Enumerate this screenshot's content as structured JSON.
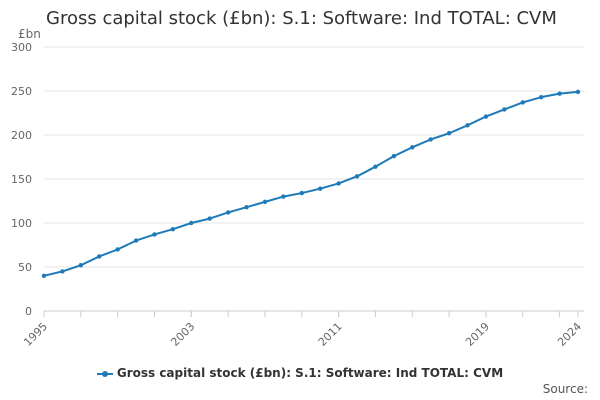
{
  "title": "Gross capital stock (£bn): S.1: Software: Ind TOTAL: CVM",
  "source_label": "Source:",
  "colors": {
    "series": "#1f7ab8",
    "grid": "#e6e6e6",
    "axis": "#cccccc",
    "text": "#666666"
  },
  "chart_data": {
    "type": "line",
    "title": "Gross capital stock (£bn): S.1: Software: Ind TOTAL: CVM",
    "ylabel": "£bn",
    "xlabel": "",
    "ylim": [
      0,
      300
    ],
    "xlim": [
      1995,
      2024
    ],
    "yticks": [
      0,
      50,
      100,
      150,
      200,
      250,
      300
    ],
    "xticks": [
      1995,
      2003,
      2011,
      2019,
      2024
    ],
    "grid": true,
    "legend": "bottom",
    "series": [
      {
        "name": "Gross capital stock (£bn): S.1: Software: Ind TOTAL: CVM",
        "x": [
          1995,
          1996,
          1997,
          1998,
          1999,
          2000,
          2001,
          2002,
          2003,
          2004,
          2005,
          2006,
          2007,
          2008,
          2009,
          2010,
          2011,
          2012,
          2013,
          2014,
          2015,
          2016,
          2017,
          2018,
          2019,
          2020,
          2021,
          2022,
          2023,
          2024
        ],
        "values": [
          40,
          45,
          52,
          62,
          70,
          80,
          87,
          93,
          100,
          105,
          112,
          118,
          124,
          130,
          134,
          139,
          145,
          153,
          164,
          176,
          186,
          195,
          202,
          211,
          221,
          229,
          237,
          243,
          247,
          249
        ]
      }
    ]
  }
}
